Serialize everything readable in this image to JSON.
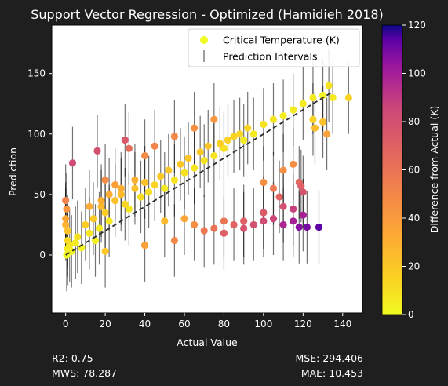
{
  "chart_data": {
    "type": "scatter",
    "title": "Support Vector Regression - Optimized (Hamidieh 2018)",
    "xlabel": "Actual Value",
    "ylabel": "Prediction",
    "xlim": [
      -7,
      150
    ],
    "ylim": [
      -48,
      190
    ],
    "xticks": [
      0,
      20,
      40,
      60,
      80,
      100,
      120,
      140
    ],
    "yticks": [
      0,
      50,
      100,
      150
    ],
    "grid": false,
    "legend_position": "top-right",
    "legend": [
      {
        "label": "Critical Temperature (K)",
        "marker": "circle",
        "color": "#f0f921"
      },
      {
        "label": "Prediction Intervals",
        "marker": "vertical-line",
        "color": "#808080"
      }
    ],
    "colorbar": {
      "label": "Difference from Actual (K)",
      "range": [
        0,
        120
      ],
      "ticks": [
        0,
        20,
        40,
        60,
        80,
        100,
        120
      ],
      "colormap": "plasma_r"
    },
    "reference_line": {
      "style": "dashed",
      "from": [
        0,
        0
      ],
      "to": [
        135,
        135
      ]
    },
    "points_sampled": [
      [
        0.5,
        0
      ],
      [
        1,
        5
      ],
      [
        1,
        12
      ],
      [
        2,
        8
      ],
      [
        3,
        3
      ],
      [
        1,
        20
      ],
      [
        0.5,
        38
      ],
      [
        3.5,
        76
      ],
      [
        5,
        10
      ],
      [
        6,
        15
      ],
      [
        8,
        6
      ],
      [
        10,
        25
      ],
      [
        12,
        18
      ],
      [
        14,
        30
      ],
      [
        15,
        12
      ],
      [
        17,
        22
      ],
      [
        18,
        40
      ],
      [
        20,
        35
      ],
      [
        22,
        28
      ],
      [
        25,
        45
      ],
      [
        28,
        50
      ],
      [
        30,
        42
      ],
      [
        32,
        38
      ],
      [
        35,
        55
      ],
      [
        38,
        48
      ],
      [
        40,
        60
      ],
      [
        42,
        52
      ],
      [
        45,
        58
      ],
      [
        48,
        65
      ],
      [
        50,
        55
      ],
      [
        52,
        70
      ],
      [
        55,
        62
      ],
      [
        58,
        75
      ],
      [
        60,
        68
      ],
      [
        62,
        80
      ],
      [
        65,
        72
      ],
      [
        68,
        85
      ],
      [
        70,
        78
      ],
      [
        72,
        90
      ],
      [
        75,
        82
      ],
      [
        78,
        92
      ],
      [
        80,
        88
      ],
      [
        82,
        95
      ],
      [
        85,
        98
      ],
      [
        88,
        100
      ],
      [
        90,
        95
      ],
      [
        92,
        105
      ],
      [
        95,
        100
      ],
      [
        100,
        108
      ],
      [
        105,
        112
      ],
      [
        110,
        115
      ],
      [
        115,
        120
      ],
      [
        120,
        125
      ],
      [
        125,
        130
      ],
      [
        130,
        132
      ],
      [
        133,
        140
      ],
      [
        143,
        130
      ],
      [
        135,
        130
      ],
      [
        16,
        86
      ],
      [
        30,
        95
      ],
      [
        32,
        88
      ],
      [
        40,
        82
      ],
      [
        45,
        90
      ],
      [
        55,
        98
      ],
      [
        65,
        105
      ],
      [
        75,
        112
      ],
      [
        20,
        62
      ],
      [
        25,
        58
      ],
      [
        28,
        55
      ],
      [
        35,
        62
      ],
      [
        22,
        50
      ],
      [
        18,
        45
      ],
      [
        12,
        40
      ],
      [
        50,
        28
      ],
      [
        60,
        30
      ],
      [
        65,
        25
      ],
      [
        70,
        20
      ],
      [
        75,
        22
      ],
      [
        80,
        28
      ],
      [
        85,
        25
      ],
      [
        90,
        22
      ],
      [
        95,
        25
      ],
      [
        100,
        28
      ],
      [
        105,
        30
      ],
      [
        110,
        25
      ],
      [
        115,
        28
      ],
      [
        120,
        33
      ],
      [
        100,
        35
      ],
      [
        110,
        40
      ],
      [
        118,
        23
      ],
      [
        122,
        23
      ],
      [
        128,
        23
      ],
      [
        115,
        38
      ],
      [
        105,
        55
      ],
      [
        108,
        48
      ],
      [
        118,
        60
      ],
      [
        119,
        57
      ],
      [
        100,
        60
      ],
      [
        110,
        70
      ],
      [
        115,
        75
      ],
      [
        120,
        52
      ],
      [
        125,
        112
      ],
      [
        126,
        105
      ],
      [
        130,
        110
      ],
      [
        132,
        100
      ],
      [
        20,
        3
      ],
      [
        40,
        8
      ],
      [
        55,
        12
      ],
      [
        80,
        18
      ],
      [
        90,
        28
      ],
      [
        0,
        45
      ],
      [
        0,
        30
      ],
      [
        0,
        25
      ]
    ],
    "interval_half_width_approx": 30
  },
  "stats": {
    "r2": "R2: 0.75",
    "mws": "MWS: 78.287",
    "mse": "MSE: 294.406",
    "mae": "MAE: 10.453"
  }
}
